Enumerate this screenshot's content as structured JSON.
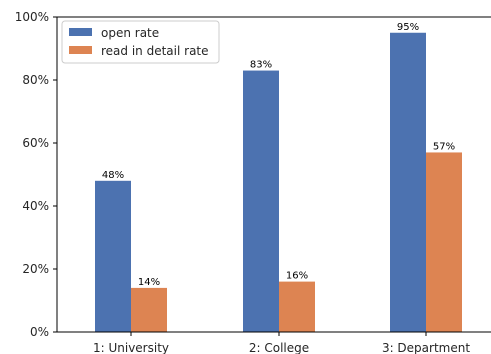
{
  "chart_data": {
    "type": "bar",
    "categories": [
      "1: University",
      "2: College",
      "3: Department"
    ],
    "series": [
      {
        "name": "open rate",
        "values": [
          48,
          83,
          95
        ],
        "labels": [
          "48%",
          "83%",
          "95%"
        ],
        "color": "#4c72b0"
      },
      {
        "name": "read in detail rate",
        "values": [
          14,
          16,
          57
        ],
        "labels": [
          "14%",
          "16%",
          "57%"
        ],
        "color": "#dd8452"
      }
    ],
    "ylim": [
      0,
      100
    ],
    "yticks": [
      0,
      20,
      40,
      60,
      80,
      100
    ],
    "ytick_labels": [
      "0%",
      "20%",
      "40%",
      "60%",
      "80%",
      "100%"
    ],
    "legend_position": "top-left",
    "grid": false
  }
}
